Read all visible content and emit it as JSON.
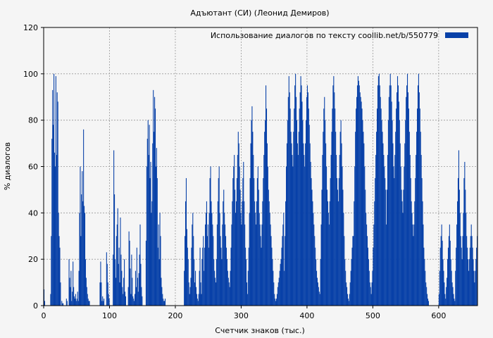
{
  "chart_data": {
    "type": "bar",
    "title": "Адъютант (СИ) (Леонид Демиров)",
    "xlabel": "Счетчик знаков (тыс.)",
    "ylabel": "% диалогов",
    "xlim": [
      0,
      659
    ],
    "ylim": [
      0,
      120
    ],
    "xticks": [
      0,
      100,
      200,
      300,
      400,
      500,
      600
    ],
    "yticks": [
      0,
      20,
      40,
      60,
      80,
      100,
      120
    ],
    "grid": true,
    "legend": "top-right",
    "series": [
      {
        "name": "Использование диалогов по тексту  coollib.net/b/550779",
        "color": "#0841a8",
        "bins_per_thousand_chars": 1,
        "clusters": [
          {
            "range": [
              0,
              2
            ],
            "values": [
              7,
              2
            ]
          },
          {
            "range": [
              10,
              26
            ],
            "values": [
              5,
              30,
              72,
              93,
              78,
              100,
              66,
              60,
              99,
              65,
              92,
              88,
              40,
              30,
              25,
              10
            ]
          },
          {
            "range": [
              27,
              30
            ],
            "values": [
              2,
              1,
              1
            ]
          },
          {
            "range": [
              34,
              36
            ],
            "values": [
              3,
              2
            ]
          },
          {
            "range": [
              38,
              52
            ],
            "values": [
              20,
              12,
              8,
              15,
              2,
              6,
              19,
              8,
              4,
              3,
              5,
              2,
              3,
              6,
              2
            ]
          },
          {
            "range": [
              53,
              70
            ],
            "values": [
              15,
              40,
              60,
              30,
              48,
              58,
              45,
              76,
              43,
              40,
              20,
              12,
              8,
              5,
              3,
              2,
              2
            ]
          },
          {
            "range": [
              85,
              92
            ],
            "values": [
              10,
              19,
              10,
              2,
              4,
              2,
              3
            ]
          },
          {
            "range": [
              95,
              100
            ],
            "values": [
              23,
              18,
              10,
              5,
              3
            ]
          },
          {
            "range": [
              105,
              125
            ],
            "values": [
              22,
              67,
              48,
              20,
              12,
              30,
              35,
              42,
              18,
              25,
              10,
              38,
              22,
              15,
              8,
              5,
              12,
              20,
              6,
              4
            ]
          },
          {
            "range": [
              128,
              150
            ],
            "values": [
              8,
              32,
              28,
              16,
              5,
              22,
              12,
              4,
              3,
              2,
              5,
              15,
              8,
              25,
              12,
              6,
              14,
              22,
              35,
              18,
              8,
              4
            ]
          },
          {
            "range": [
              155,
              185
            ],
            "values": [
              28,
              60,
              72,
              80,
              65,
              78,
              55,
              62,
              40,
              45,
              70,
              93,
              75,
              90,
              85,
              60,
              68,
              55,
              25,
              35,
              20,
              40,
              30,
              12,
              8,
              5,
              3,
              2,
              2,
              3
            ]
          },
          {
            "range": [
              213,
              235
            ],
            "values": [
              15,
              30,
              45,
              55,
              33,
              25,
              20,
              10,
              5,
              8,
              12,
              25,
              35,
              40,
              30,
              20,
              10,
              15,
              8,
              5,
              3,
              2
            ]
          },
          {
            "range": [
              235,
              262
            ],
            "values": [
              5,
              15,
              25,
              10,
              5,
              20,
              25,
              30,
              15,
              25,
              35,
              40,
              45,
              30,
              35,
              25,
              40,
              55,
              60,
              45,
              40,
              35,
              30,
              20,
              15,
              12,
              10
            ]
          },
          {
            "range": [
              262,
              310
            ],
            "values": [
              20,
              35,
              45,
              55,
              60,
              40,
              30,
              25,
              20,
              35,
              45,
              50,
              40,
              35,
              30,
              25,
              20,
              15,
              12,
              10,
              8,
              15,
              25,
              35,
              45,
              55,
              60,
              65,
              50,
              40,
              45,
              55,
              65,
              75,
              70,
              60,
              50,
              40,
              35,
              45,
              55,
              62,
              45,
              35,
              25,
              20,
              10,
              5
            ]
          },
          {
            "range": [
              310,
              365
            ],
            "values": [
              15,
              25,
              40,
              55,
              70,
              80,
              86,
              75,
              65,
              55,
              45,
              40,
              35,
              45,
              55,
              60,
              50,
              40,
              35,
              30,
              25,
              35,
              45,
              55,
              65,
              75,
              80,
              95,
              85,
              70,
              60,
              50,
              45,
              40,
              35,
              30,
              25,
              20,
              15,
              10,
              5,
              3,
              2,
              3,
              5,
              8,
              10,
              12,
              15,
              18,
              20,
              25,
              30,
              35,
              40
            ]
          },
          {
            "range": [
              365,
              420
            ],
            "values": [
              15,
              30,
              45,
              60,
              70,
              80,
              90,
              99,
              92,
              85,
              75,
              70,
              65,
              60,
              75,
              85,
              95,
              100,
              90,
              80,
              70,
              65,
              75,
              85,
              92,
              99,
              95,
              88,
              80,
              70,
              65,
              60,
              70,
              80,
              90,
              95,
              92,
              85,
              78,
              70,
              62,
              55,
              50,
              45,
              40,
              35,
              30,
              25,
              20,
              15,
              12,
              10,
              8,
              6,
              5
            ]
          },
          {
            "range": [
              420,
              470
            ],
            "values": [
              20,
              35,
              50,
              65,
              75,
              85,
              90,
              80,
              70,
              60,
              50,
              45,
              40,
              35,
              45,
              55,
              65,
              75,
              85,
              95,
              99,
              92,
              85,
              75,
              65,
              55,
              50,
              45,
              55,
              65,
              75,
              80,
              70,
              60,
              50,
              40,
              30,
              20,
              15,
              10,
              8,
              5,
              3,
              2,
              5,
              10,
              15,
              20,
              25,
              30
            ]
          },
          {
            "range": [
              470,
              520
            ],
            "values": [
              30,
              45,
              60,
              75,
              85,
              90,
              95,
              99,
              97,
              95,
              92,
              90,
              88,
              85,
              80,
              75,
              70,
              60,
              50,
              40,
              35,
              30,
              25,
              20,
              15,
              10,
              8,
              5,
              10,
              15,
              25,
              35,
              45,
              55,
              65,
              75,
              85,
              95,
              99,
              100,
              95,
              90,
              85,
              80,
              75,
              70,
              65,
              60,
              55,
              50
            ]
          },
          {
            "range": [
              520,
              585
            ],
            "values": [
              35,
              50,
              65,
              80,
              90,
              95,
              100,
              95,
              88,
              80,
              70,
              60,
              55,
              65,
              75,
              85,
              92,
              99,
              95,
              88,
              80,
              70,
              60,
              50,
              45,
              40,
              50,
              60,
              70,
              80,
              90,
              95,
              100,
              92,
              85,
              75,
              65,
              55,
              45,
              40,
              35,
              30,
              35,
              45,
              55,
              65,
              75,
              85,
              95,
              100,
              92,
              85,
              75,
              65,
              55,
              45,
              35,
              25,
              20,
              15,
              10,
              8,
              5,
              3,
              2
            ]
          },
          {
            "range": [
              600,
              625
            ],
            "values": [
              5,
              15,
              25,
              30,
              35,
              28,
              20,
              15,
              10,
              5,
              3,
              8,
              12,
              20,
              25,
              30,
              35,
              28,
              20,
              15,
              10,
              8,
              5,
              3,
              2
            ]
          },
          {
            "range": [
              625,
              659
            ],
            "values": [
              15,
              25,
              35,
              45,
              55,
              67,
              50,
              40,
              30,
              25,
              20,
              30,
              40,
              55,
              62,
              50,
              40,
              30,
              25,
              20,
              15,
              20,
              25,
              30,
              35,
              30,
              25,
              20,
              15,
              10,
              15,
              20,
              25,
              30
            ]
          }
        ]
      }
    ]
  }
}
